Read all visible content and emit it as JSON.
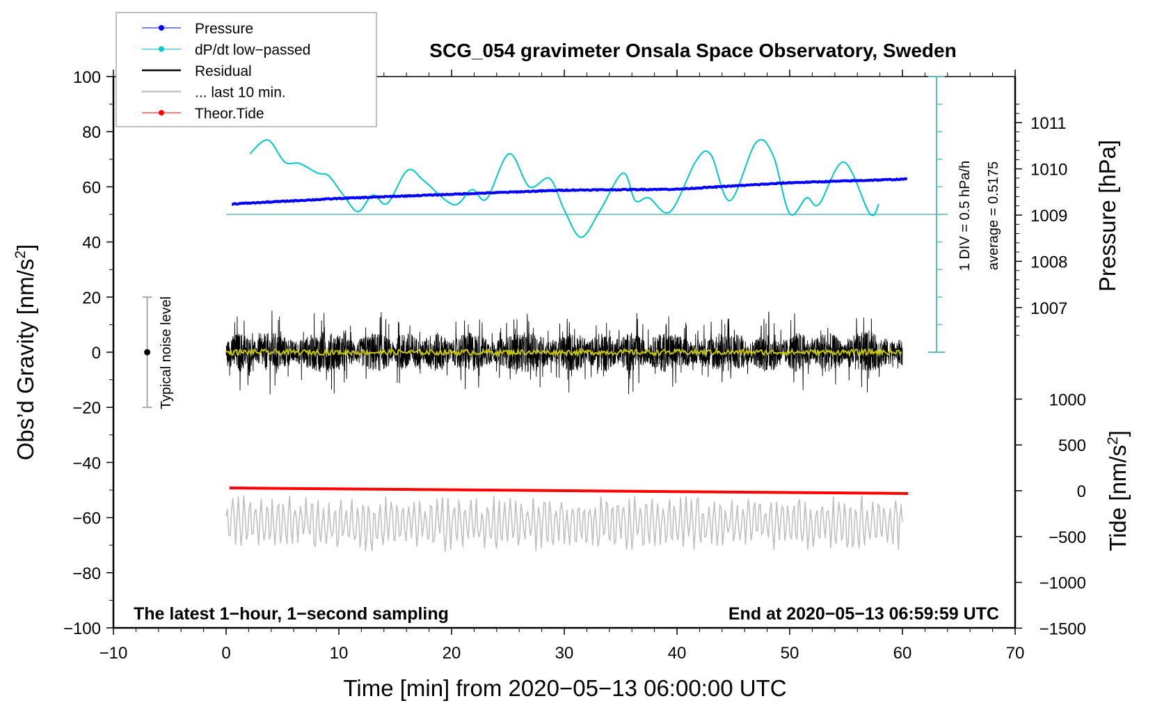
{
  "chart_data": {
    "type": "line",
    "title": "SCG_054 gravimeter Onsala Space Observatory, Sweden",
    "xlabel": "Time [min] from 2020−05−13 06:00:00 UTC",
    "ylabel": "Obs’d Gravity [nm/s",
    "ylabel_sup": "2",
    "ylabel_end": "]",
    "pressure_label": "Pressure [hPa]",
    "tide_label": "Tide [nm/s",
    "tide_label_sup": "2",
    "tide_label_end": "]",
    "xlim": [
      -10,
      70
    ],
    "ylim": [
      -100,
      100
    ],
    "xticks": [
      "−10",
      "0",
      "10",
      "20",
      "30",
      "40",
      "50",
      "60",
      "70"
    ],
    "xtick_values": [
      -10,
      0,
      10,
      20,
      30,
      40,
      50,
      60,
      70
    ],
    "yticks": [
      "100",
      "80",
      "60",
      "40",
      "20",
      "0",
      "−20",
      "−40",
      "−60",
      "−80",
      "−100"
    ],
    "ytick_values": [
      100,
      80,
      60,
      40,
      20,
      0,
      -20,
      -40,
      -60,
      -80,
      -100
    ],
    "pressure_ticks": [
      "1011",
      "1010",
      "1009",
      "1008",
      "1007"
    ],
    "pressure_tick_values": [
      1011,
      1010,
      1009,
      1008,
      1007
    ],
    "tide_ticks": [
      "1000",
      "500",
      "0",
      "−500",
      "−1000",
      "−1500"
    ],
    "tide_tick_values": [
      1000,
      500,
      0,
      -500,
      -1000,
      -1500
    ],
    "annotations": {
      "bottom_left": "The latest 1−hour, 1−second sampling",
      "bottom_right": "End at 2020−05−13 06:59:59 UTC",
      "noise": "Typical noise level",
      "div": "1 DIV = 0.5 hPa/h",
      "average": "average = 0.5175"
    },
    "legend": [
      {
        "label": "Pressure",
        "color": "#0000ff",
        "marker": true
      },
      {
        "label": "dP/dt low−passed",
        "color": "#00c8c8",
        "marker": true
      },
      {
        "label": "Residual",
        "color": "#000000",
        "marker": false
      },
      {
        "label": "... last 10 min.",
        "color": "#c0c0c0",
        "marker": false
      },
      {
        "label": "Theor.Tide",
        "color": "#ff0000",
        "marker": true
      }
    ],
    "legend_position": "top-left",
    "noise_level": {
      "x": -7,
      "center": 0,
      "half_range": 20
    },
    "series": [
      {
        "name": "Pressure",
        "unit": "hPa",
        "color": "#0000ff",
        "x": [
          0.5,
          10,
          20,
          30,
          40,
          50,
          60.5
        ],
        "values": [
          1009.24,
          1009.36,
          1009.45,
          1009.54,
          1009.56,
          1009.7,
          1009.78
        ]
      },
      {
        "name": "dP/dt low-passed",
        "unit": "gravity-axis units",
        "color": "#00c8c8",
        "x": [
          2.1,
          3.7,
          5.2,
          6.5,
          8.1,
          9.1,
          10.4,
          11.7,
          13.0,
          14.3,
          16.1,
          17.6,
          20.2,
          21.8,
          23.1,
          25.1,
          26.9,
          28.7,
          30.0,
          31.5,
          33.2,
          35.2,
          36.3,
          37.5,
          39.4,
          41.7,
          43.0,
          44.7,
          47.0,
          48.5,
          50.0,
          51.5,
          52.6,
          54.8,
          57.1,
          57.9
        ],
        "values": [
          72,
          77,
          69,
          68.5,
          65,
          64,
          57,
          51,
          57,
          54,
          66,
          62,
          53.5,
          59,
          55.6,
          72,
          60,
          63,
          51.6,
          41.7,
          51.6,
          65,
          55,
          56,
          51,
          69.5,
          71.7,
          55,
          76,
          71.7,
          50.3,
          56,
          53.7,
          69,
          50.3,
          53.7
        ],
        "baseline": 50
      },
      {
        "name": "Residual",
        "unit": "nm/s2",
        "color": "#000000",
        "x_range": [
          0,
          60
        ],
        "center": 0,
        "amplitude": 12
      },
      {
        "name": "Residual smoothed",
        "color": "#c8c800",
        "x_range": [
          0,
          60
        ],
        "center": 0,
        "amplitude": 2
      },
      {
        "name": "... last 10 min.",
        "color": "#c0c0c0",
        "x_range": [
          0,
          60
        ],
        "center": -62,
        "amplitude": 8
      },
      {
        "name": "Theor.Tide",
        "unit": "nm/s2",
        "color": "#ff0000",
        "x": [
          0.3,
          60.5
        ],
        "values": [
          30,
          -30
        ]
      }
    ]
  }
}
